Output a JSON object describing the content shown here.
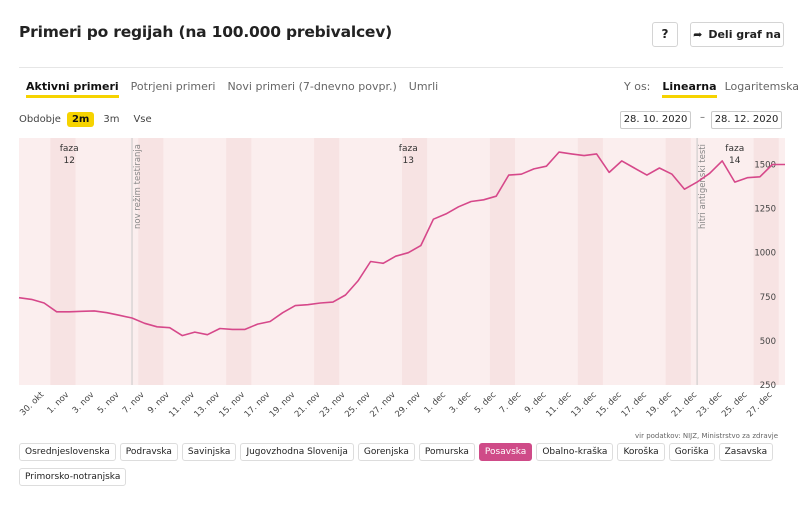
{
  "header": {
    "title": "Primeri po regijah (na 100.000 prebivalcev)",
    "help_label": "?",
    "share_label": "Deli graf na"
  },
  "tabs": [
    {
      "label": "Aktivni primeri",
      "active": true
    },
    {
      "label": "Potrjeni primeri",
      "active": false
    },
    {
      "label": "Novi primeri (7-dnevno povpr.)",
      "active": false
    },
    {
      "label": "Umrli",
      "active": false
    }
  ],
  "y_axis_control": {
    "label": "Y os:",
    "options": [
      {
        "label": "Linearna",
        "active": true
      },
      {
        "label": "Logaritemska",
        "active": false
      }
    ]
  },
  "period": {
    "label": "Obdobje",
    "options": [
      {
        "label": "2m",
        "active": true
      },
      {
        "label": "3m",
        "active": false
      },
      {
        "label": "Vse",
        "active": false
      }
    ],
    "from": "28. 10. 2020",
    "separator": "–",
    "to": "28. 12. 2020"
  },
  "source_text": "vir podatkov: NIJZ, Ministrstvo za zdravje",
  "regions": [
    {
      "label": "Osrednjeslovenska",
      "active": false
    },
    {
      "label": "Podravska",
      "active": false
    },
    {
      "label": "Savinjska",
      "active": false
    },
    {
      "label": "Jugovzhodna Slovenija",
      "active": false
    },
    {
      "label": "Gorenjska",
      "active": false
    },
    {
      "label": "Pomurska",
      "active": false
    },
    {
      "label": "Posavska",
      "active": true
    },
    {
      "label": "Obalno-kraška",
      "active": false
    },
    {
      "label": "Koroška",
      "active": false
    },
    {
      "label": "Goriška",
      "active": false
    },
    {
      "label": "Zasavska",
      "active": false
    },
    {
      "label": "Primorsko-notranjska",
      "active": false
    }
  ],
  "colors": {
    "line": "#d6488a",
    "accent": "#f6d300",
    "band": "#fbeeee",
    "weekend": "#f7e3e3"
  },
  "chart_data": {
    "type": "line",
    "title": "",
    "xlabel": "",
    "ylabel": "",
    "ylim": [
      250,
      1650
    ],
    "yticks": [
      250,
      500,
      750,
      1000,
      1250,
      1500
    ],
    "x_tick_labels": [
      "30. okt",
      "1. nov",
      "3. nov",
      "5. nov",
      "7. nov",
      "9. nov",
      "11. nov",
      "13. nov",
      "15. nov",
      "17. nov",
      "19. nov",
      "21. nov",
      "23. nov",
      "25. nov",
      "27. nov",
      "29. nov",
      "1. dec",
      "3. dec",
      "5. dec",
      "7. dec",
      "9. dec",
      "11. dec",
      "13. dec",
      "15. dec",
      "17. dec",
      "19. dec",
      "21. dec",
      "23. dec",
      "25. dec",
      "27. dec"
    ],
    "markers": [
      {
        "date": "6. nov",
        "label": "nov režim testiranja"
      },
      {
        "date": "21. dec",
        "label": "hitri antigenski testi"
      }
    ],
    "phases": [
      {
        "date": "1. nov",
        "label1": "faza",
        "label2": "12"
      },
      {
        "date": "28. nov",
        "label1": "faza",
        "label2": "13"
      },
      {
        "date": "24. dec",
        "label1": "faza",
        "label2": "14"
      }
    ],
    "weekend_pairs": [
      "31. okt",
      "7. nov",
      "14. nov",
      "21. nov",
      "28. nov",
      "5. dec",
      "12. dec",
      "19. dec",
      "26. dec"
    ],
    "series": [
      {
        "x": [
          "28. okt",
          "29. okt",
          "30. okt",
          "31. okt",
          "1. nov",
          "2. nov",
          "3. nov",
          "4. nov",
          "5. nov",
          "6. nov",
          "7. nov",
          "8. nov",
          "9. nov",
          "10. nov",
          "11. nov",
          "12. nov",
          "13. nov",
          "14. nov",
          "15. nov",
          "16. nov",
          "17. nov",
          "18. nov",
          "19. nov",
          "20. nov",
          "21. nov",
          "22. nov",
          "23. nov",
          "24. nov",
          "25. nov",
          "26. nov",
          "27. nov",
          "28. nov",
          "29. nov",
          "30. nov",
          "1. dec",
          "2. dec",
          "3. dec",
          "4. dec",
          "5. dec",
          "6. dec",
          "7. dec",
          "8. dec",
          "9. dec",
          "10. dec",
          "11. dec",
          "12. dec",
          "13. dec",
          "14. dec",
          "15. dec",
          "16. dec",
          "17. dec",
          "18. dec",
          "19. dec",
          "20. dec",
          "21. dec",
          "22. dec",
          "23. dec",
          "24. dec",
          "25. dec",
          "26. dec",
          "27. dec",
          "28. dec"
        ],
        "values": [
          745,
          735,
          715,
          665,
          665,
          668,
          670,
          660,
          645,
          630,
          600,
          580,
          575,
          530,
          550,
          535,
          570,
          565,
          565,
          595,
          610,
          660,
          700,
          705,
          715,
          720,
          760,
          840,
          950,
          940,
          980,
          1000,
          1040,
          1190,
          1220,
          1260,
          1290,
          1300,
          1320,
          1440,
          1445,
          1475,
          1490,
          1570,
          1560,
          1550,
          1560,
          1455,
          1520,
          1480,
          1440,
          1480,
          1445,
          1360,
          1400,
          1450,
          1520,
          1400,
          1425,
          1430,
          1500,
          1500
        ]
      }
    ]
  }
}
